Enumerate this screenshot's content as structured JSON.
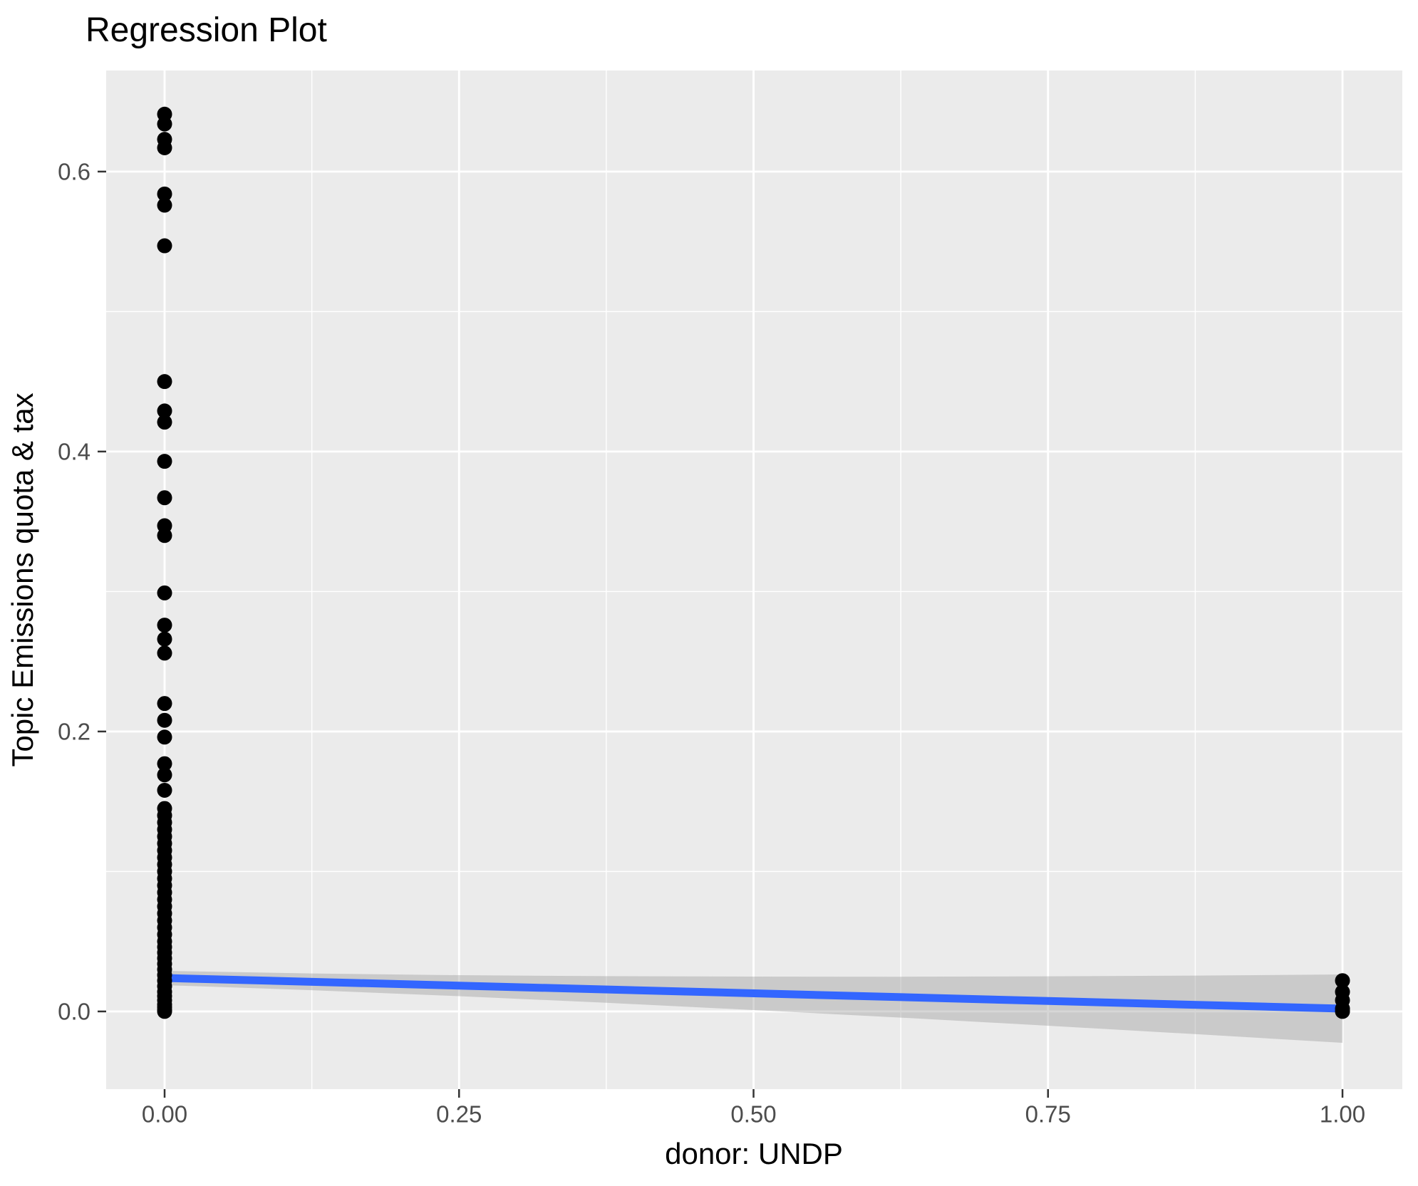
{
  "title": "Regression Plot",
  "chart_data": {
    "type": "scatter",
    "title": "Regression Plot",
    "xlabel": "donor: UNDP",
    "ylabel": "Topic Emissions quota & tax",
    "xlim": [
      -0.0496,
      1.0508
    ],
    "ylim": [
      -0.0555,
      0.6722
    ],
    "x_breaks": [
      0,
      0.25,
      0.5,
      0.75,
      1.0
    ],
    "x_break_labels": [
      "0.00",
      "0.25",
      "0.50",
      "0.75",
      "1.00"
    ],
    "x_minor_breaks": [
      0.125,
      0.375,
      0.625,
      0.875
    ],
    "y_breaks": [
      0,
      0.2,
      0.4,
      0.6
    ],
    "y_break_labels": [
      "0.0",
      "0.2",
      "0.4",
      "0.6"
    ],
    "y_minor_breaks": [
      0.1,
      0.3,
      0.5
    ],
    "grid": true,
    "legend_position": "none",
    "series": [
      {
        "name": "donor = 0",
        "x": 0,
        "y": [
          0.641,
          0.634,
          0.623,
          0.617,
          0.584,
          0.576,
          0.547,
          0.45,
          0.429,
          0.421,
          0.393,
          0.367,
          0.347,
          0.34,
          0.299,
          0.276,
          0.266,
          0.256,
          0.22,
          0.208,
          0.196,
          0.177,
          0.169,
          0.158,
          0.145,
          0.14,
          0.135,
          0.13,
          0.125,
          0.12,
          0.115,
          0.11,
          0.105,
          0.1,
          0.095,
          0.09,
          0.085,
          0.08,
          0.075,
          0.07,
          0.065,
          0.06,
          0.055,
          0.05,
          0.046,
          0.042,
          0.038,
          0.034,
          0.03,
          0.026,
          0.022,
          0.018,
          0.014,
          0.011,
          0.008,
          0.005,
          0.003,
          0.001,
          0.0
        ]
      },
      {
        "name": "donor = 1",
        "x": 1,
        "y": [
          0.022,
          0.014,
          0.008,
          0.002,
          0.0
        ]
      }
    ],
    "regression_line": {
      "x": [
        0,
        1
      ],
      "y": [
        0.0239,
        0.002
      ]
    },
    "confidence_band": {
      "x": [
        0,
        0.125,
        0.25,
        0.375,
        0.5,
        0.625,
        0.75,
        0.875,
        1.0
      ],
      "upper": [
        0.029,
        0.0271,
        0.0259,
        0.0252,
        0.0249,
        0.0248,
        0.0251,
        0.0256,
        0.0264
      ],
      "lower": [
        0.0188,
        0.0152,
        0.0109,
        0.0062,
        0.001,
        -0.0044,
        -0.0102,
        -0.0162,
        -0.0224
      ]
    },
    "colors": {
      "panel": "#EBEBEB",
      "grid": "#FFFFFF",
      "point": "#000000",
      "line": "#3366FF",
      "band": "rgba(153,153,153,0.4)",
      "tick": "#333333",
      "tick_text": "#4D4D4D",
      "text": "#000000"
    },
    "point_radius": 10.5,
    "line_width": 11
  }
}
